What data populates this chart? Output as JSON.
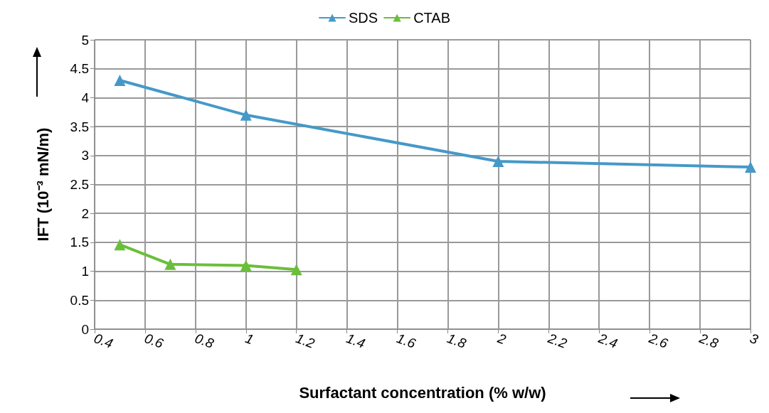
{
  "chart_data": {
    "type": "line",
    "xlabel": "Surfactant concentration (% w/w)",
    "ylabel": "IFT (10⁻³ mN/m)",
    "series": [
      {
        "name": "SDS",
        "color": "#4599c8",
        "x": [
          0.5,
          1,
          2,
          3
        ],
        "values": [
          4.3,
          3.7,
          2.9,
          2.8
        ]
      },
      {
        "name": "CTAB",
        "color": "#6abf3a",
        "x": [
          0.5,
          0.7,
          1,
          1.2
        ],
        "values": [
          1.46,
          1.12,
          1.1,
          1.03
        ]
      }
    ],
    "xlim": [
      0.4,
      3
    ],
    "xticks": [
      0.4,
      0.6,
      0.8,
      1,
      1.2,
      1.4,
      1.6,
      1.8,
      2,
      2.2,
      2.4,
      2.6,
      2.8,
      3
    ],
    "ylim": [
      0,
      5
    ],
    "yticks": [
      0,
      0.5,
      1,
      1.5,
      2,
      2.5,
      3,
      3.5,
      4,
      4.5,
      5
    ],
    "grid": true,
    "legend": "top",
    "marker": "triangle",
    "line_style": "solid"
  }
}
